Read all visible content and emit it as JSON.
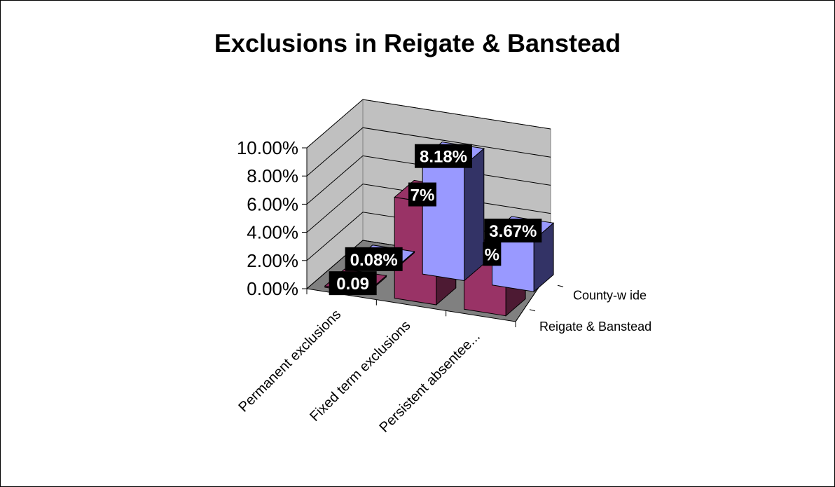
{
  "chart_data": {
    "type": "bar",
    "title": "Exclusions in Reigate & Banstead",
    "categories": [
      "Permanent exclusions",
      "Fixed term exclusions",
      "Persistent absentee..."
    ],
    "series": [
      {
        "name": "Reigate & Banstead",
        "values": [
          0.08,
          8.18,
          3.67
        ],
        "labels": [
          "0.08%",
          "8.18%",
          "3.67%"
        ],
        "color": "#9999ff"
      },
      {
        "name": "County-wide",
        "values": [
          0.09,
          7.17,
          3.73
        ],
        "labels": [
          "0.09",
          "7%",
          "%"
        ],
        "color": "#993366"
      }
    ],
    "yticks": [
      "0.00%",
      "2.00%",
      "4.00%",
      "6.00%",
      "8.00%",
      "10.00%"
    ],
    "ylim": [
      0,
      10
    ],
    "legend_depth_labels": [
      "County-w ide",
      "Reigate & Banstead"
    ],
    "grid": true,
    "colors": {
      "back_wall": "#c0c0c0",
      "floor": "#808080",
      "side_wall": "#c0c0c0",
      "label_box": "#000000"
    }
  }
}
